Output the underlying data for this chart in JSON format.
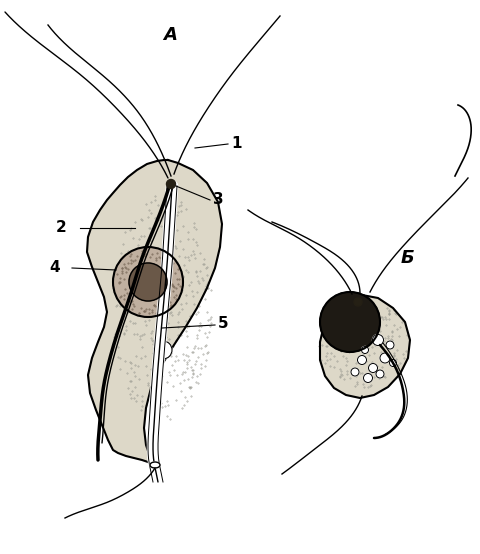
{
  "background_color": "#ffffff",
  "label_A": "А",
  "label_B": "Б",
  "line_color": "#000000",
  "fig_width": 4.81,
  "fig_height": 5.54,
  "dpi": 100
}
